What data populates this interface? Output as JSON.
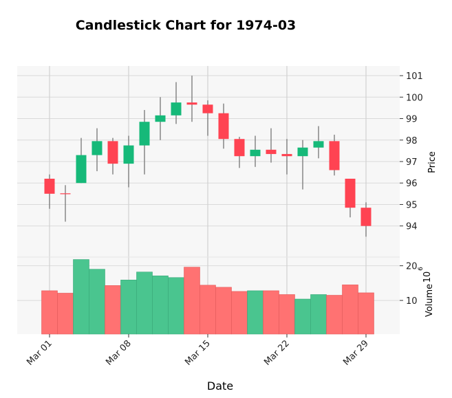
{
  "chart_data": {
    "type": "candlestick",
    "title": "Candlestick Chart for 1974-03",
    "xlabel": "Date",
    "price_panel": {
      "ylabel": "Price",
      "ylim": [
        92.55,
        101.45
      ],
      "yticks": [
        94,
        95,
        96,
        97,
        98,
        99,
        100,
        101
      ]
    },
    "volume_panel": {
      "ylabel": "Volume",
      "exponent_label": "10",
      "exponent_power": "6",
      "ylim": [
        0.3,
        22.5
      ],
      "yticks": [
        10,
        20
      ]
    },
    "x_tick_indices": [
      0,
      5,
      10,
      15,
      20
    ],
    "x_tick_labels": [
      "Mar 01",
      "Mar 08",
      "Mar 15",
      "Mar 22",
      "Mar 29"
    ],
    "colors": {
      "up": "#16b979",
      "down": "#ff4352",
      "up_volume": "#4ac58f",
      "down_volume": "#ff7272",
      "wick": "#6b6b6b"
    },
    "candles": [
      {
        "open": 96.2,
        "high": 96.4,
        "low": 94.8,
        "close": 95.5,
        "volume": 12.8
      },
      {
        "open": 95.52,
        "high": 95.9,
        "low": 94.2,
        "close": 95.48,
        "volume": 12.1
      },
      {
        "open": 96.0,
        "high": 98.1,
        "low": 96.0,
        "close": 97.3,
        "volume": 21.8
      },
      {
        "open": 97.3,
        "high": 98.55,
        "low": 96.55,
        "close": 97.95,
        "volume": 19.0
      },
      {
        "open": 97.95,
        "high": 98.1,
        "low": 96.4,
        "close": 96.9,
        "volume": 14.3
      },
      {
        "open": 96.9,
        "high": 98.2,
        "low": 95.8,
        "close": 97.75,
        "volume": 15.9
      },
      {
        "open": 97.75,
        "high": 99.4,
        "low": 96.4,
        "close": 98.85,
        "volume": 18.2
      },
      {
        "open": 98.85,
        "high": 100.0,
        "low": 98.0,
        "close": 99.15,
        "volume": 17.1
      },
      {
        "open": 99.15,
        "high": 100.7,
        "low": 98.75,
        "close": 99.75,
        "volume": 16.6
      },
      {
        "open": 99.75,
        "high": 101.0,
        "low": 98.85,
        "close": 99.65,
        "volume": 19.6
      },
      {
        "open": 99.65,
        "high": 99.85,
        "low": 98.2,
        "close": 99.25,
        "volume": 14.4
      },
      {
        "open": 99.25,
        "high": 99.7,
        "low": 97.6,
        "close": 98.05,
        "volume": 13.8
      },
      {
        "open": 98.05,
        "high": 98.15,
        "low": 96.7,
        "close": 97.25,
        "volume": 12.6
      },
      {
        "open": 97.25,
        "high": 98.2,
        "low": 96.75,
        "close": 97.55,
        "volume": 12.8
      },
      {
        "open": 97.55,
        "high": 98.55,
        "low": 96.95,
        "close": 97.35,
        "volume": 12.8
      },
      {
        "open": 97.35,
        "high": 98.05,
        "low": 96.4,
        "close": 97.25,
        "volume": 11.7
      },
      {
        "open": 97.25,
        "high": 98.0,
        "low": 95.7,
        "close": 97.65,
        "volume": 10.4
      },
      {
        "open": 97.65,
        "high": 98.65,
        "low": 97.15,
        "close": 97.95,
        "volume": 11.7
      },
      {
        "open": 97.95,
        "high": 98.25,
        "low": 96.35,
        "close": 96.6,
        "volume": 11.5
      },
      {
        "open": 96.2,
        "high": 96.2,
        "low": 94.4,
        "close": 94.85,
        "volume": 14.5
      },
      {
        "open": 94.85,
        "high": 95.1,
        "low": 93.5,
        "close": 94.0,
        "volume": 12.2
      }
    ]
  }
}
